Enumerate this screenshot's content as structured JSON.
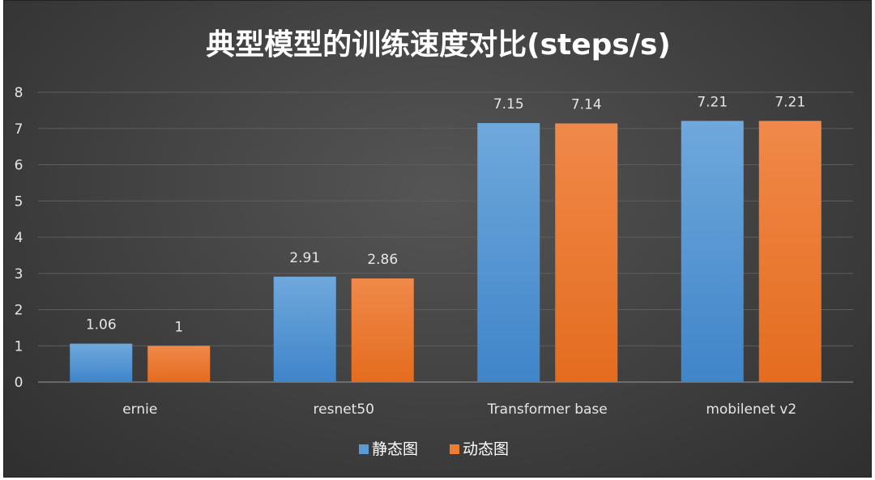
{
  "chart_data": {
    "type": "bar",
    "title": "典型模型的训练速度对比(steps/s)",
    "categories": [
      "ernie",
      "resnet50",
      "Transformer base",
      "mobilenet v2"
    ],
    "series": [
      {
        "name": "静态图",
        "values": [
          1.06,
          2.91,
          7.15,
          7.21
        ],
        "labels": [
          "1.06",
          "2.91",
          "7.15",
          "7.21"
        ],
        "color": "#5B9BD5"
      },
      {
        "name": "动态图",
        "values": [
          1,
          2.86,
          7.14,
          7.21
        ],
        "labels": [
          "1",
          "2.86",
          "7.14",
          "7.21"
        ],
        "color": "#ED7D31"
      }
    ],
    "ylim": [
      0,
      8
    ],
    "yticks": [
      "0",
      "1",
      "2",
      "3",
      "4",
      "5",
      "6",
      "7",
      "8"
    ],
    "grid": true,
    "legend": "bottom"
  }
}
